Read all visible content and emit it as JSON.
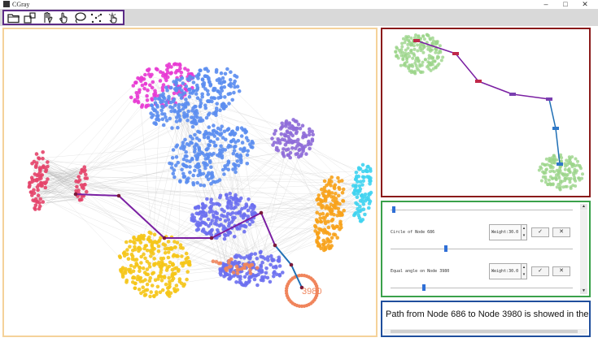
{
  "window": {
    "title": "CGray",
    "controls": {
      "minimize": "–",
      "maximize": "□",
      "close": "✕"
    }
  },
  "toolbar": {
    "tools": [
      {
        "name": "open-folder-icon"
      },
      {
        "name": "export-icon"
      },
      {
        "name": "pan-hand-icon"
      },
      {
        "name": "select-hand-icon"
      },
      {
        "name": "lasso-icon"
      },
      {
        "name": "scatter-points-icon"
      },
      {
        "name": "click-hand-icon"
      }
    ]
  },
  "graph": {
    "selected_node_label": "3980",
    "colors": {
      "magenta": "#e83ad3",
      "blue": "#5b8def",
      "purple": "#8e6bd8",
      "red": "#e4446a",
      "yellow": "#f5c518",
      "orange": "#f7a21b",
      "cyan": "#3fd3ef",
      "violet": "#6b6ff0",
      "salmon": "#f0855c",
      "path": "#7a1fa2",
      "path_end": "#1f6fb5"
    }
  },
  "controls": {
    "row1": {
      "label": "Circle of Node 686",
      "weight": "Weight:30.0",
      "slider_value": 0.3
    },
    "row2": {
      "label": "Equal angle on Node 3980",
      "weight": "Weight:30.0",
      "slider_value": 0.22
    },
    "top_slider_value": 0.02,
    "confirm": "✓",
    "cancel": "✕",
    "spin_up": "▴",
    "spin_down": "▾"
  },
  "message": {
    "text": "Path from Node 686 to Node 3980 is showed in the"
  }
}
